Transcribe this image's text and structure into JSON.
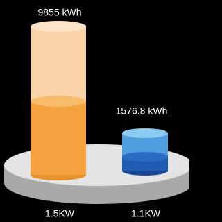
{
  "items": [
    {
      "energy": "9855 kWh",
      "power": "1.5KW"
    },
    {
      "energy": "1576.8 kWh",
      "power": "1.1KW"
    }
  ]
}
